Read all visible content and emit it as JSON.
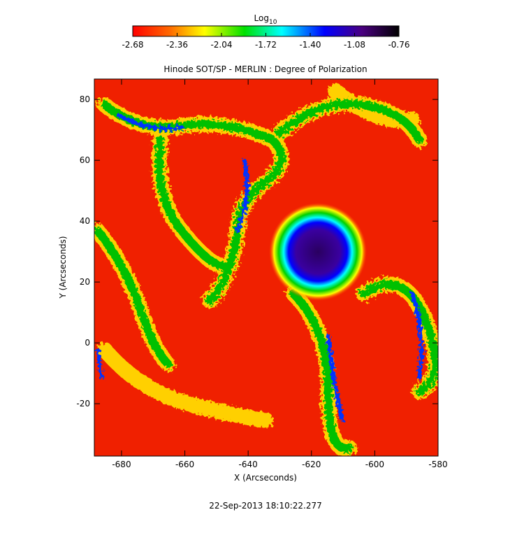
{
  "chart_data": {
    "type": "image",
    "title": "Hinode SOT/SP - MERLIN : Degree of Polarization",
    "x_label": "X (Arcseconds)",
    "y_label": "Y (Arcseconds)",
    "footer": "22-Sep-2013 18:10:22.277",
    "colorbar_label": "Log",
    "colorbar_label_sub": "10",
    "clim": [
      -2.68,
      -0.76
    ],
    "cticks": [
      -2.68,
      -2.36,
      -2.04,
      -1.72,
      {
        "value": -1.4,
        "label": "-1.40"
      },
      -1.08,
      -0.76
    ],
    "xlim": [
      -688.6,
      -580
    ],
    "xticks": [
      -680,
      -660,
      -640,
      -620,
      -600,
      -580
    ],
    "ylim": [
      -37.2,
      86.7
    ],
    "yticks": [
      -20,
      0,
      20,
      40,
      60,
      80
    ]
  }
}
